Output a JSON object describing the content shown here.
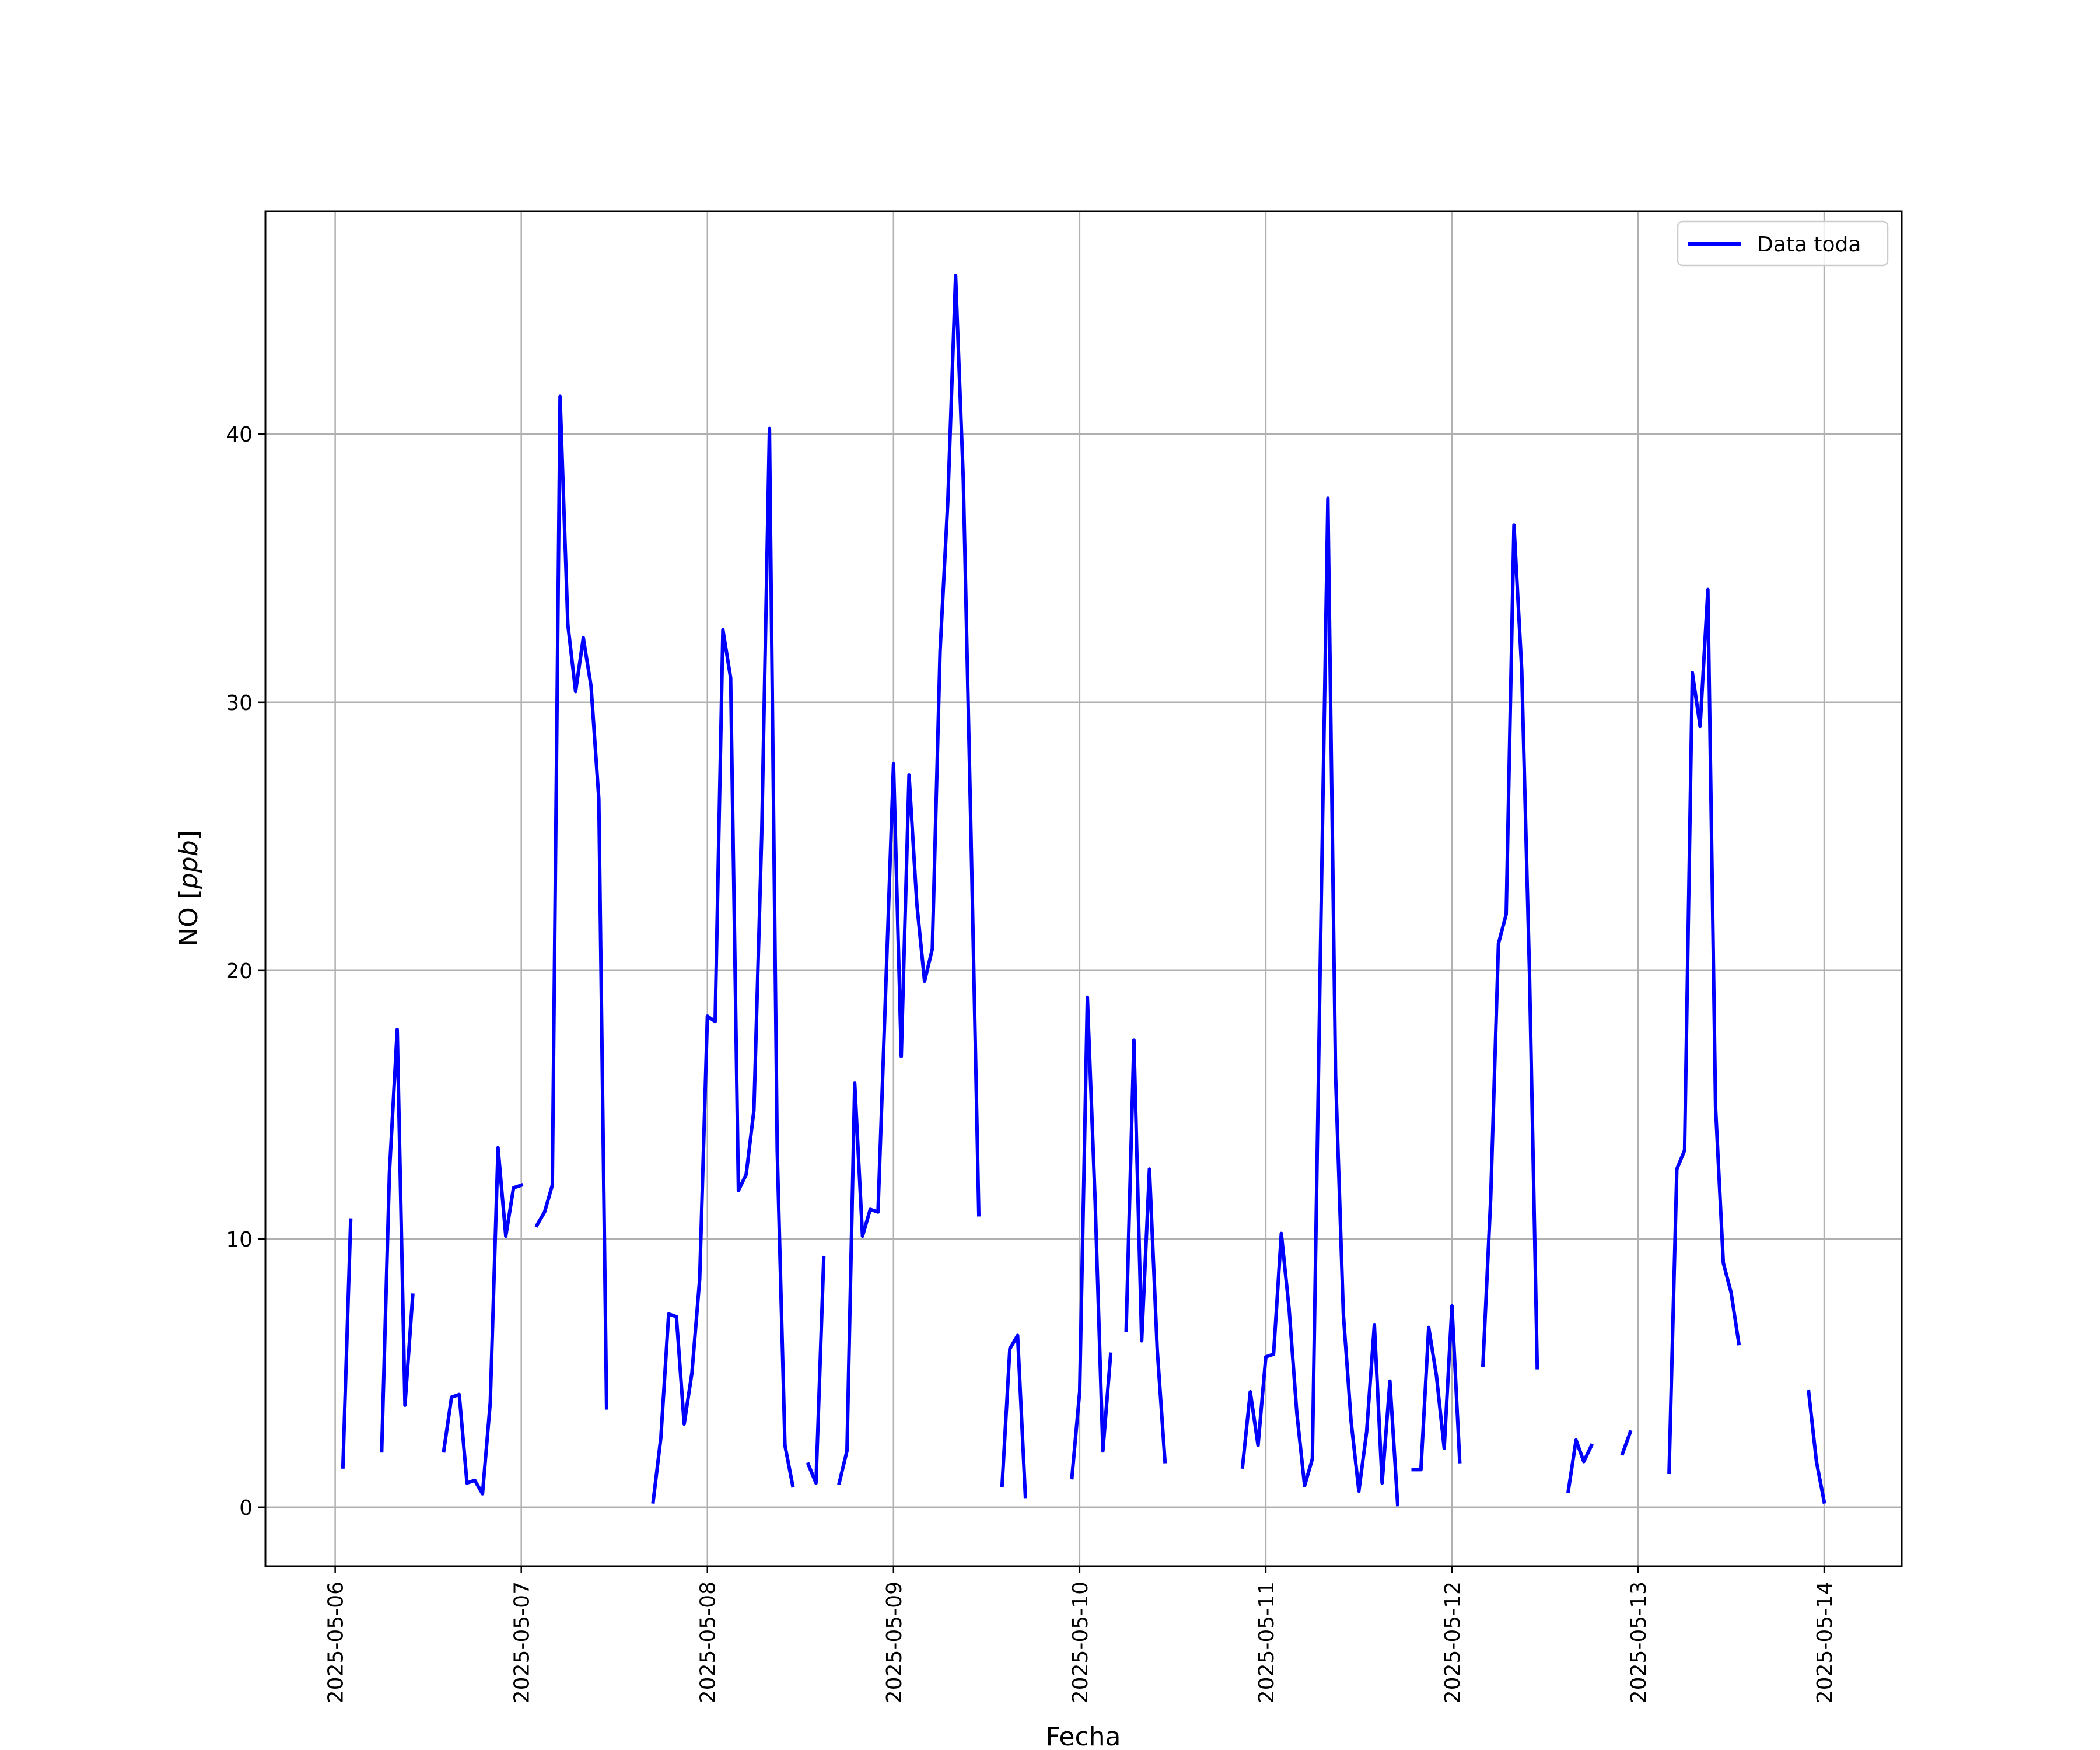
{
  "chart_data": {
    "type": "line",
    "title": "",
    "xlabel": "Fecha",
    "ylabel": "NO [ppb]",
    "ylabel_prefix": "NO [",
    "ylabel_unit": "ppb",
    "ylabel_suffix": "]",
    "xlim": [
      "2025-05-05 15:00",
      "2025-05-14 10:00"
    ],
    "ylim": [
      -2.2,
      48.3
    ],
    "xticks": [
      "2025-05-06",
      "2025-05-07",
      "2025-05-08",
      "2025-05-09",
      "2025-05-10",
      "2025-05-11",
      "2025-05-12",
      "2025-05-13",
      "2025-05-14"
    ],
    "yticks": [
      0,
      10,
      20,
      30,
      40
    ],
    "grid": true,
    "legend_position": "upper right",
    "line_color": "#0000ff",
    "series": [
      {
        "name": "Data toda",
        "color": "#0000ff",
        "segments": [
          [
            [
              "2025-05-06 01:00",
              1.5
            ],
            [
              "2025-05-06 02:00",
              10.7
            ]
          ],
          [
            [
              "2025-05-06 06:00",
              2.1
            ],
            [
              "2025-05-06 07:00",
              12.5
            ],
            [
              "2025-05-06 08:00",
              17.8
            ],
            [
              "2025-05-06 09:00",
              3.8
            ],
            [
              "2025-05-06 10:00",
              7.9
            ]
          ],
          [
            [
              "2025-05-06 14:00",
              2.1
            ],
            [
              "2025-05-06 15:00",
              4.1
            ],
            [
              "2025-05-06 16:00",
              4.2
            ],
            [
              "2025-05-06 17:00",
              0.9
            ],
            [
              "2025-05-06 18:00",
              1.0
            ],
            [
              "2025-05-06 19:00",
              0.5
            ],
            [
              "2025-05-06 20:00",
              3.9
            ],
            [
              "2025-05-06 21:00",
              13.4
            ],
            [
              "2025-05-06 22:00",
              10.1
            ],
            [
              "2025-05-06 23:00",
              11.9
            ],
            [
              "2025-05-07 00:00",
              12.0
            ]
          ],
          [
            [
              "2025-05-07 02:00",
              10.5
            ],
            [
              "2025-05-07 03:00",
              11.0
            ],
            [
              "2025-05-07 04:00",
              12.0
            ],
            [
              "2025-05-07 05:00",
              41.4
            ],
            [
              "2025-05-07 06:00",
              32.9
            ],
            [
              "2025-05-07 07:00",
              30.4
            ],
            [
              "2025-05-07 08:00",
              32.4
            ],
            [
              "2025-05-07 09:00",
              30.6
            ],
            [
              "2025-05-07 10:00",
              26.4
            ],
            [
              "2025-05-07 11:00",
              3.7
            ]
          ],
          [
            [
              "2025-05-07 17:00",
              0.2
            ],
            [
              "2025-05-07 18:00",
              2.6
            ],
            [
              "2025-05-07 19:00",
              7.2
            ],
            [
              "2025-05-07 20:00",
              7.1
            ],
            [
              "2025-05-07 21:00",
              3.1
            ],
            [
              "2025-05-07 22:00",
              5.0
            ],
            [
              "2025-05-07 23:00",
              8.5
            ],
            [
              "2025-05-08 00:00",
              18.3
            ],
            [
              "2025-05-08 01:00",
              18.1
            ],
            [
              "2025-05-08 02:00",
              32.7
            ],
            [
              "2025-05-08 03:00",
              30.9
            ],
            [
              "2025-05-08 04:00",
              11.8
            ],
            [
              "2025-05-08 05:00",
              12.4
            ],
            [
              "2025-05-08 06:00",
              14.8
            ],
            [
              "2025-05-08 07:00",
              25.0
            ],
            [
              "2025-05-08 08:00",
              40.2
            ],
            [
              "2025-05-08 09:00",
              13.3
            ],
            [
              "2025-05-08 10:00",
              2.3
            ],
            [
              "2025-05-08 11:00",
              0.8
            ]
          ],
          [
            [
              "2025-05-08 13:00",
              1.6
            ],
            [
              "2025-05-08 14:00",
              0.9
            ],
            [
              "2025-05-08 15:00",
              9.3
            ]
          ],
          [
            [
              "2025-05-08 17:00",
              0.9
            ],
            [
              "2025-05-08 18:00",
              2.1
            ],
            [
              "2025-05-08 19:00",
              15.8
            ],
            [
              "2025-05-08 20:00",
              10.1
            ],
            [
              "2025-05-08 21:00",
              11.1
            ],
            [
              "2025-05-08 22:00",
              11.0
            ],
            [
              "2025-05-09 00:00",
              27.7
            ],
            [
              "2025-05-09 01:00",
              16.8
            ],
            [
              "2025-05-09 02:00",
              27.3
            ],
            [
              "2025-05-09 03:00",
              22.5
            ],
            [
              "2025-05-09 04:00",
              19.6
            ],
            [
              "2025-05-09 05:00",
              20.8
            ],
            [
              "2025-05-09 06:00",
              31.9
            ],
            [
              "2025-05-09 07:00",
              37.5
            ],
            [
              "2025-05-09 08:00",
              45.9
            ],
            [
              "2025-05-09 09:00",
              38.3
            ],
            [
              "2025-05-09 10:00",
              25.0
            ],
            [
              "2025-05-09 11:00",
              10.9
            ]
          ],
          [
            [
              "2025-05-09 14:00",
              0.8
            ],
            [
              "2025-05-09 15:00",
              5.9
            ],
            [
              "2025-05-09 16:00",
              6.4
            ],
            [
              "2025-05-09 17:00",
              0.4
            ]
          ],
          [
            [
              "2025-05-09 23:00",
              1.1
            ],
            [
              "2025-05-10 00:00",
              4.3
            ],
            [
              "2025-05-10 01:00",
              19.0
            ],
            [
              "2025-05-10 02:00",
              11.4
            ],
            [
              "2025-05-10 03:00",
              2.1
            ],
            [
              "2025-05-10 04:00",
              5.7
            ]
          ],
          [
            [
              "2025-05-10 06:00",
              6.6
            ],
            [
              "2025-05-10 07:00",
              17.4
            ],
            [
              "2025-05-10 08:00",
              6.2
            ],
            [
              "2025-05-10 09:00",
              12.6
            ],
            [
              "2025-05-10 10:00",
              5.9
            ],
            [
              "2025-05-10 11:00",
              1.7
            ]
          ],
          [
            [
              "2025-05-10 21:00",
              1.5
            ],
            [
              "2025-05-10 22:00",
              4.3
            ],
            [
              "2025-05-10 23:00",
              2.3
            ],
            [
              "2025-05-11 00:00",
              5.6
            ],
            [
              "2025-05-11 01:00",
              5.7
            ],
            [
              "2025-05-11 02:00",
              10.2
            ],
            [
              "2025-05-11 03:00",
              7.4
            ],
            [
              "2025-05-11 04:00",
              3.5
            ],
            [
              "2025-05-11 05:00",
              0.8
            ],
            [
              "2025-05-11 06:00",
              1.8
            ],
            [
              "2025-05-11 07:00",
              20.0
            ],
            [
              "2025-05-11 08:00",
              37.6
            ],
            [
              "2025-05-11 09:00",
              16.1
            ],
            [
              "2025-05-11 10:00",
              7.2
            ],
            [
              "2025-05-11 11:00",
              3.2
            ],
            [
              "2025-05-11 12:00",
              0.6
            ],
            [
              "2025-05-11 13:00",
              2.8
            ],
            [
              "2025-05-11 14:00",
              6.8
            ],
            [
              "2025-05-11 15:00",
              0.9
            ],
            [
              "2025-05-11 16:00",
              4.7
            ],
            [
              "2025-05-11 17:00",
              0.1
            ]
          ],
          [
            [
              "2025-05-11 19:00",
              1.4
            ],
            [
              "2025-05-11 20:00",
              1.4
            ],
            [
              "2025-05-11 21:00",
              6.7
            ],
            [
              "2025-05-11 22:00",
              4.9
            ],
            [
              "2025-05-11 23:00",
              2.2
            ],
            [
              "2025-05-12 00:00",
              7.5
            ],
            [
              "2025-05-12 01:00",
              1.7
            ]
          ],
          [
            [
              "2025-05-12 04:00",
              5.3
            ],
            [
              "2025-05-12 05:00",
              11.5
            ],
            [
              "2025-05-12 06:00",
              21.0
            ],
            [
              "2025-05-12 07:00",
              22.1
            ],
            [
              "2025-05-12 08:00",
              36.6
            ],
            [
              "2025-05-12 09:00",
              31.2
            ],
            [
              "2025-05-12 10:00",
              19.9
            ],
            [
              "2025-05-12 11:00",
              5.2
            ]
          ],
          [
            [
              "2025-05-12 15:00",
              0.6
            ],
            [
              "2025-05-12 16:00",
              2.5
            ],
            [
              "2025-05-12 17:00",
              1.7
            ],
            [
              "2025-05-12 18:00",
              2.3
            ]
          ],
          [
            [
              "2025-05-12 22:00",
              2.0
            ],
            [
              "2025-05-12 23:00",
              2.8
            ]
          ],
          [
            [
              "2025-05-13 04:00",
              1.3
            ],
            [
              "2025-05-13 05:00",
              12.6
            ],
            [
              "2025-05-13 06:00",
              13.3
            ],
            [
              "2025-05-13 07:00",
              31.1
            ],
            [
              "2025-05-13 08:00",
              29.1
            ],
            [
              "2025-05-13 09:00",
              34.2
            ],
            [
              "2025-05-13 10:00",
              14.9
            ],
            [
              "2025-05-13 11:00",
              9.1
            ],
            [
              "2025-05-13 12:00",
              8.0
            ],
            [
              "2025-05-13 13:00",
              6.1
            ]
          ],
          [
            [
              "2025-05-13 22:00",
              4.3
            ],
            [
              "2025-05-13 23:00",
              1.7
            ],
            [
              "2025-05-14 00:00",
              0.2
            ]
          ]
        ]
      }
    ]
  }
}
